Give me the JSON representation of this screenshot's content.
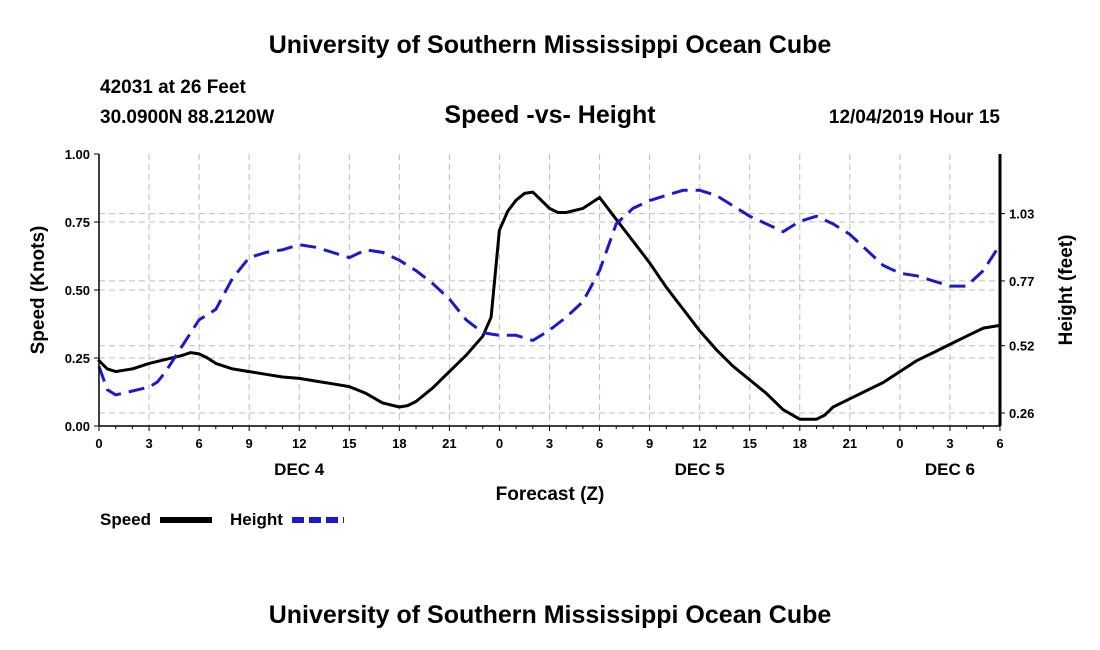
{
  "page": {
    "top_title": "University of Southern Mississippi Ocean Cube",
    "bottom_title": "University of Southern Mississippi Ocean Cube",
    "station": "42031 at 26 Feet",
    "coords": "30.0900N 88.2120W",
    "datetime": "12/04/2019 Hour 15"
  },
  "colors": {
    "speed": "#000000",
    "height": "#1a1acc",
    "grid": "#bdbdbd"
  },
  "chart_data": {
    "type": "line",
    "title": "Speed -vs- Height",
    "xlabel": "Forecast (Z)",
    "ylabel": "Speed (Knots)",
    "y2label": "Height (feet)",
    "xlim": [
      0,
      54
    ],
    "ylim": [
      0,
      1.0
    ],
    "y2lim": [
      0.21,
      1.26
    ],
    "grid": true,
    "x_ticks": [
      0,
      3,
      6,
      9,
      12,
      15,
      18,
      21,
      24,
      27,
      30,
      33,
      36,
      39,
      42,
      45,
      48,
      51,
      54
    ],
    "x_tick_labels": [
      "0",
      "3",
      "6",
      "9",
      "12",
      "15",
      "18",
      "21",
      "0",
      "3",
      "6",
      "9",
      "12",
      "15",
      "18",
      "21",
      "0",
      "3",
      "6"
    ],
    "day_labels": [
      {
        "x": 12,
        "label": "DEC 4"
      },
      {
        "x": 36,
        "label": "DEC 5"
      },
      {
        "x": 51,
        "label": "DEC 6"
      }
    ],
    "y_ticks": [
      0.0,
      0.25,
      0.5,
      0.75,
      1.0
    ],
    "y_tick_labels": [
      "0.00",
      "0.25",
      "0.50",
      "0.75",
      "1.00"
    ],
    "y2_ticks": [
      0.26,
      0.52,
      0.77,
      1.03
    ],
    "y2_tick_labels": [
      "0.26",
      "0.52",
      "0.77",
      "1.03"
    ],
    "legend": {
      "position": "bottom-left",
      "entries": [
        "Speed",
        "Height"
      ]
    },
    "series": [
      {
        "name": "Speed",
        "axis": "left",
        "style": "solid",
        "x": [
          0,
          0.5,
          1,
          1.5,
          2,
          3,
          4,
          5,
          5.5,
          6,
          6.5,
          7,
          8,
          9,
          10,
          11,
          12,
          13,
          14,
          15,
          16,
          17,
          18,
          18.5,
          19,
          20,
          21,
          22,
          23,
          23.5,
          24,
          24.5,
          25,
          25.5,
          26,
          26.5,
          27,
          27.5,
          28,
          29,
          30,
          31,
          32,
          33,
          34,
          35,
          36,
          37,
          38,
          39,
          40,
          41,
          42,
          43,
          43.5,
          44,
          45,
          46,
          47,
          48,
          49,
          50,
          51,
          52,
          53,
          54
        ],
        "y": [
          0.24,
          0.21,
          0.2,
          0.205,
          0.21,
          0.23,
          0.245,
          0.26,
          0.27,
          0.265,
          0.25,
          0.23,
          0.21,
          0.2,
          0.19,
          0.18,
          0.175,
          0.165,
          0.155,
          0.145,
          0.12,
          0.085,
          0.07,
          0.075,
          0.09,
          0.14,
          0.2,
          0.26,
          0.33,
          0.4,
          0.72,
          0.79,
          0.83,
          0.855,
          0.86,
          0.83,
          0.8,
          0.785,
          0.785,
          0.8,
          0.84,
          0.76,
          0.68,
          0.6,
          0.51,
          0.43,
          0.35,
          0.28,
          0.22,
          0.17,
          0.12,
          0.06,
          0.025,
          0.025,
          0.04,
          0.07,
          0.1,
          0.13,
          0.16,
          0.2,
          0.24,
          0.27,
          0.3,
          0.33,
          0.36,
          0.37
        ]
      },
      {
        "name": "Height",
        "axis": "right",
        "style": "dashed",
        "x": [
          0,
          0.5,
          1,
          2,
          3,
          3.5,
          4,
          5,
          6,
          6.5,
          7,
          8,
          9,
          10,
          11,
          12,
          13,
          14,
          15,
          16,
          17,
          18,
          19,
          20,
          21,
          22,
          23,
          24,
          25,
          26,
          27,
          28,
          29,
          30,
          31,
          32,
          33,
          34,
          35,
          36,
          37,
          38,
          39,
          40,
          41,
          42,
          43,
          44,
          45,
          46,
          47,
          48,
          49,
          50,
          51,
          52,
          53,
          54
        ],
        "y": [
          0.44,
          0.35,
          0.33,
          0.345,
          0.36,
          0.38,
          0.42,
          0.52,
          0.62,
          0.64,
          0.66,
          0.78,
          0.86,
          0.88,
          0.89,
          0.91,
          0.9,
          0.88,
          0.86,
          0.89,
          0.88,
          0.85,
          0.81,
          0.76,
          0.7,
          0.62,
          0.57,
          0.56,
          0.56,
          0.54,
          0.58,
          0.63,
          0.69,
          0.81,
          0.99,
          1.05,
          1.08,
          1.1,
          1.12,
          1.12,
          1.1,
          1.06,
          1.02,
          0.99,
          0.96,
          1.0,
          1.02,
          0.99,
          0.95,
          0.89,
          0.83,
          0.8,
          0.79,
          0.77,
          0.75,
          0.75,
          0.81,
          0.91
        ]
      }
    ]
  }
}
